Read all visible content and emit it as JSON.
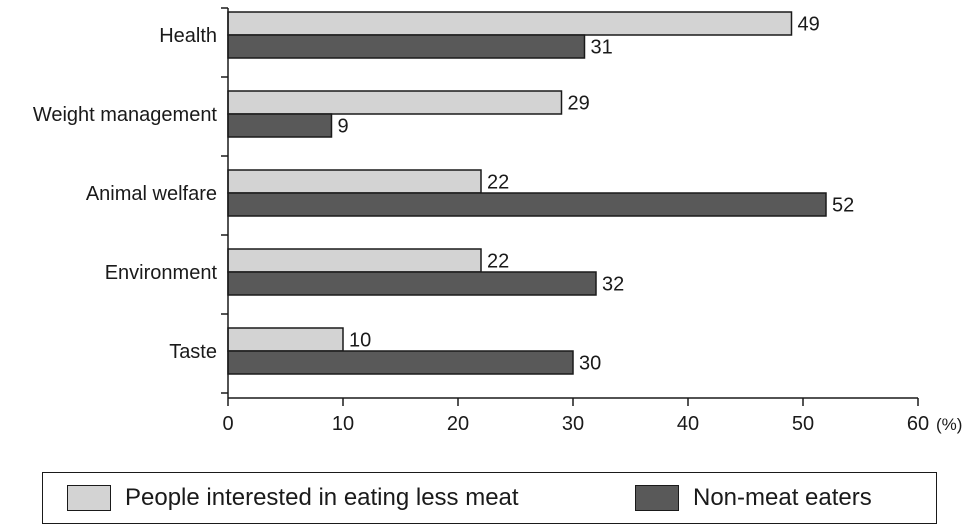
{
  "chart_data": {
    "type": "bar",
    "orientation": "horizontal",
    "categories": [
      "Health",
      "Weight management",
      "Animal welfare",
      "Environment",
      "Taste"
    ],
    "series": [
      {
        "name": "People interested in eating less meat",
        "values": [
          49,
          29,
          22,
          22,
          10
        ],
        "color": "#d3d3d3"
      },
      {
        "name": "Non-meat eaters",
        "values": [
          31,
          9,
          52,
          32,
          30
        ],
        "color": "#595959"
      }
    ],
    "xlim": [
      0,
      60
    ],
    "xticks": [
      0,
      10,
      20,
      30,
      40,
      50,
      60
    ],
    "x_unit": "(%)",
    "title": "",
    "xlabel": "",
    "ylabel": "",
    "legend_position": "bottom",
    "grid": false
  }
}
